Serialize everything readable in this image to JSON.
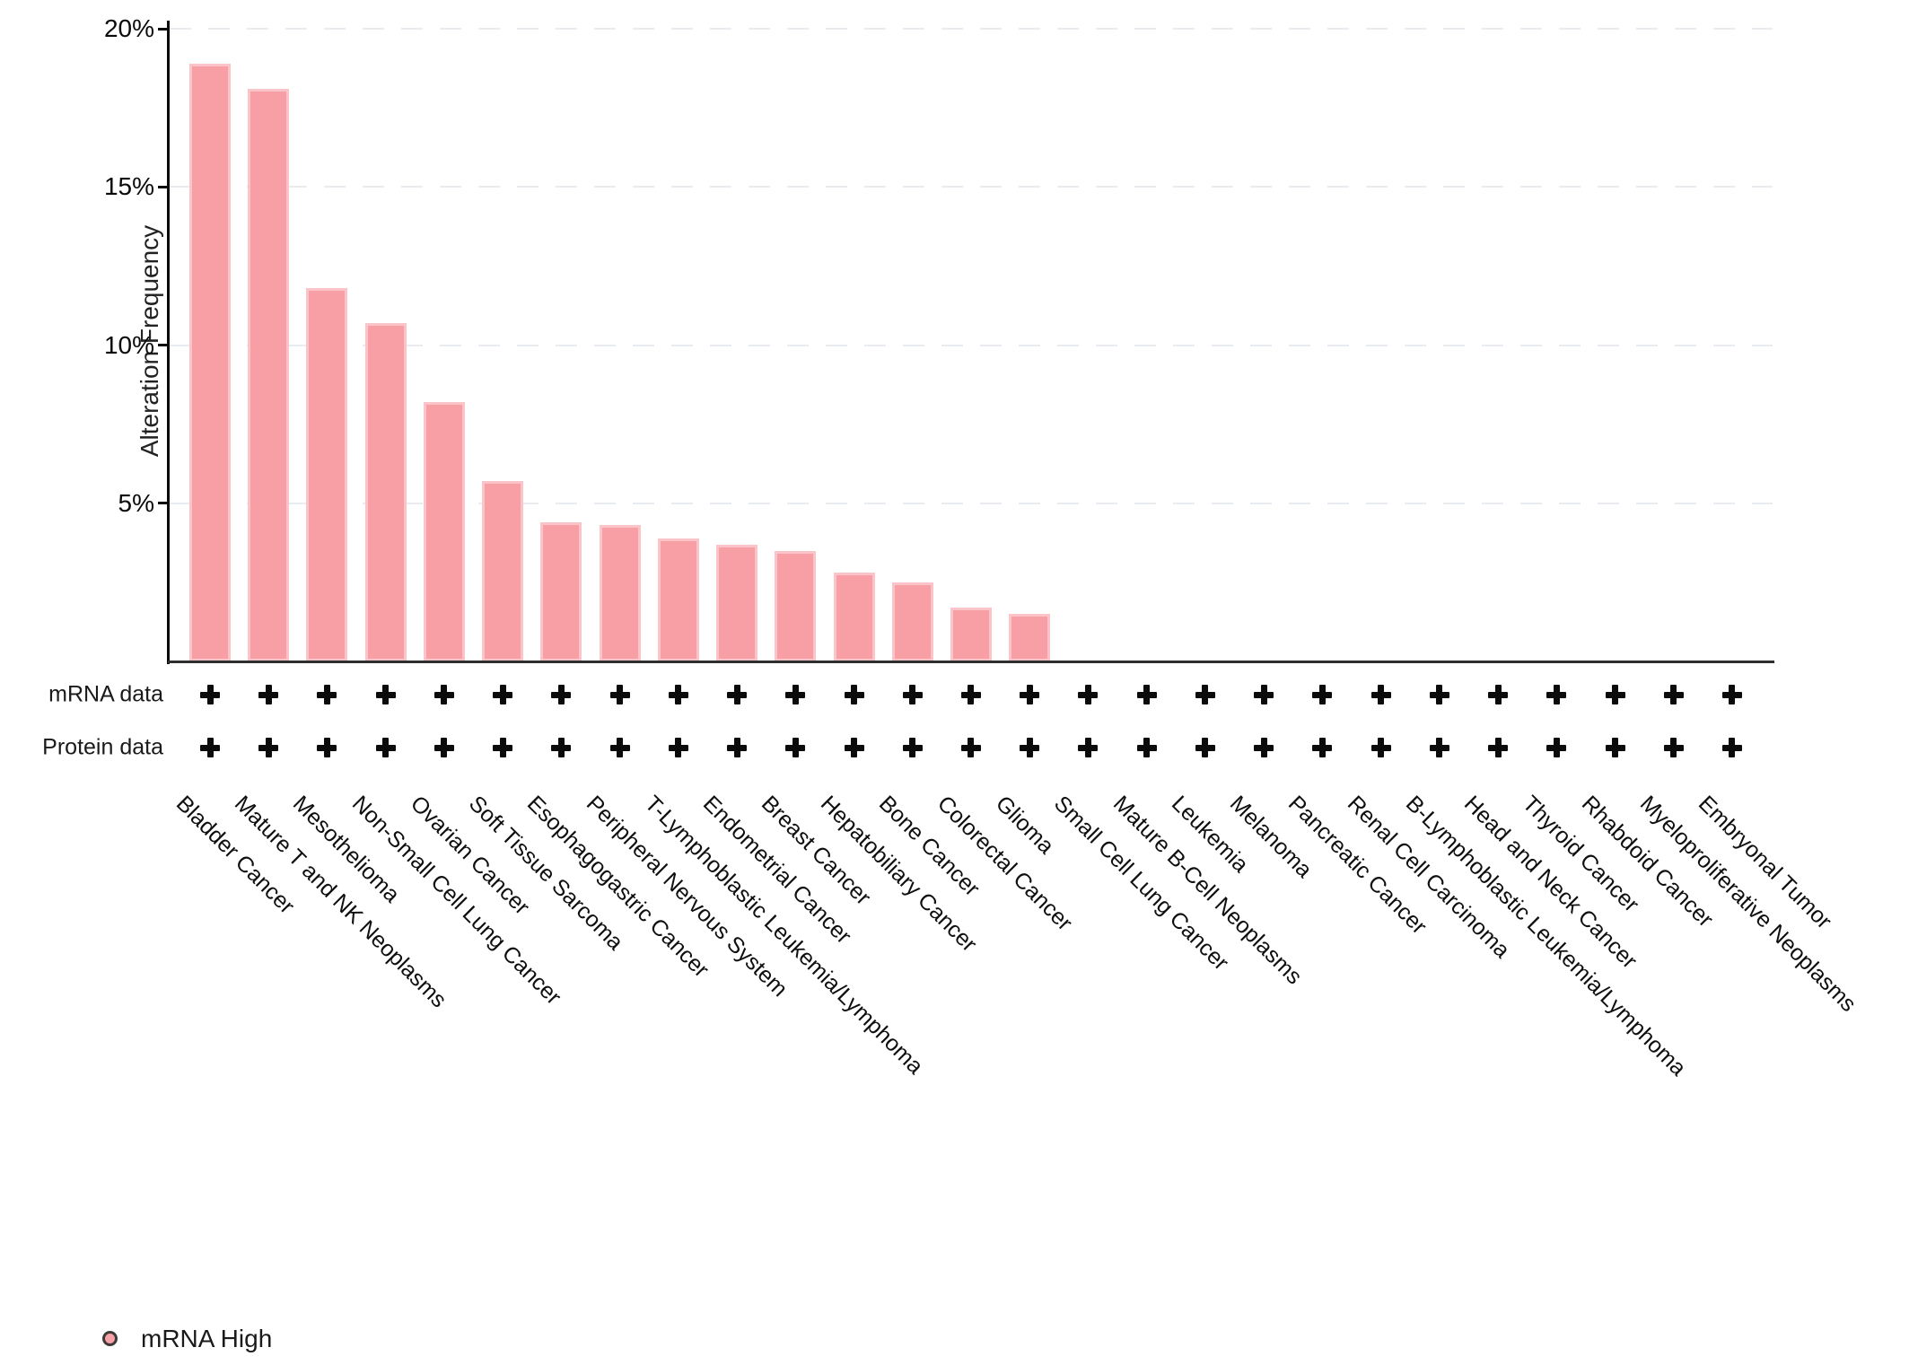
{
  "chart_data": {
    "type": "bar",
    "title": "",
    "ylabel": "Alteration Frequency",
    "xlabel": "",
    "ylim": [
      0,
      20
    ],
    "grid": "dashed-horizontal",
    "bar_fill_color": "#F89EA5",
    "bar_stroke_color": "#FBC4C8",
    "y_axis": {
      "ticks": [
        {
          "value": 20,
          "label": "20%"
        },
        {
          "value": 15,
          "label": "15%"
        },
        {
          "value": 10,
          "label": "10%"
        },
        {
          "value": 5,
          "label": "5%"
        }
      ]
    },
    "categories": [
      "Bladder Cancer",
      "Mature T and NK Neoplasms",
      "Mesothelioma",
      "Non-Small Cell Lung Cancer",
      "Ovarian Cancer",
      "Soft Tissue Sarcoma",
      "Esophagogastric Cancer",
      "Peripheral Nervous System",
      "T-Lymphoblastic Leukemia/Lymphoma",
      "Endometrial Cancer",
      "Breast Cancer",
      "Hepatobiliary Cancer",
      "Bone Cancer",
      "Colorectal Cancer",
      "Glioma",
      "Small Cell Lung Cancer",
      "Mature B-Cell Neoplasms",
      "Leukemia",
      "Melanoma",
      "Pancreatic Cancer",
      "Renal Cell Carcinoma",
      "B-Lymphoblastic Leukemia/Lymphoma",
      "Head and Neck Cancer",
      "Thyroid Cancer",
      "Rhabdoid Cancer",
      "Myeloproliferative Neoplasms",
      "Embryonal Tumor"
    ],
    "values": [
      18.9,
      18.1,
      11.8,
      10.7,
      8.2,
      5.7,
      4.4,
      4.3,
      3.9,
      3.7,
      3.5,
      2.8,
      2.5,
      1.7,
      1.5,
      0,
      0,
      0,
      0,
      0,
      0,
      0,
      0,
      0,
      0,
      0,
      0
    ],
    "series_name": "mRNA High",
    "mrna_data": [
      "+",
      "+",
      "+",
      "+",
      "+",
      "+",
      "+",
      "+",
      "+",
      "+",
      "+",
      "+",
      "+",
      "+",
      "+",
      "+",
      "+",
      "+",
      "+",
      "+",
      "+",
      "+",
      "+",
      "+",
      "+",
      "+",
      "+"
    ],
    "protein_data": [
      "+",
      "+",
      "+",
      "+",
      "+",
      "+",
      "+",
      "+",
      "+",
      "+",
      "+",
      "+",
      "+",
      "+",
      "+",
      "+",
      "+",
      "+",
      "+",
      "+",
      "+",
      "+",
      "+",
      "+",
      "+",
      "+",
      "+"
    ],
    "legend_position": "bottom-left"
  },
  "tracks": {
    "mrna_label": "mRNA data",
    "protein_label": "Protein data"
  },
  "legend": {
    "label": "mRNA High",
    "marker_fill": "#F8A0A8",
    "marker_stroke": "#3F3A3A"
  }
}
